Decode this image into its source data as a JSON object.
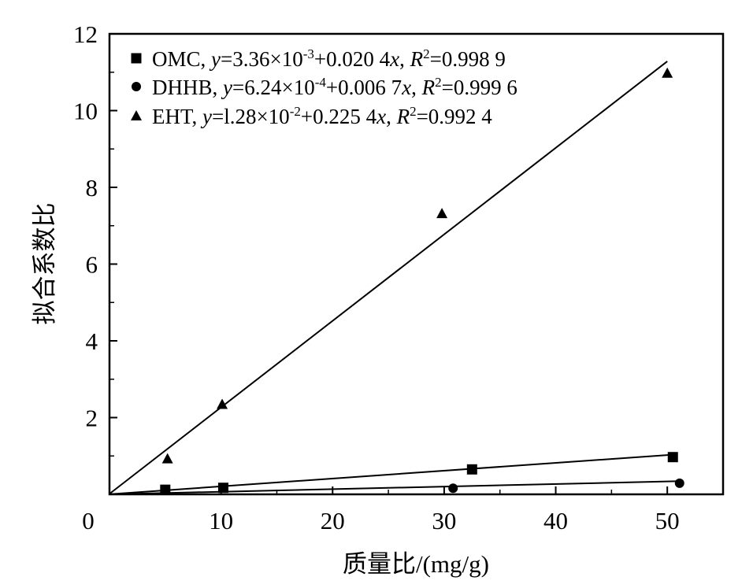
{
  "chart_data": {
    "type": "scatter",
    "xlabel": "质量比/(mg/g)",
    "ylabel": "拟合系数比",
    "xlim": [
      0,
      55
    ],
    "ylim": [
      0,
      12
    ],
    "xticks": [
      0,
      10,
      20,
      30,
      40,
      50
    ],
    "yticks": [
      2,
      4,
      6,
      8,
      10,
      12
    ],
    "grid": false,
    "legend_position": "top-left",
    "series": [
      {
        "name": "OMC",
        "marker": "square",
        "color": "#000000",
        "points": [
          {
            "x": 5,
            "y": 0.12
          },
          {
            "x": 10.2,
            "y": 0.17
          },
          {
            "x": 32.5,
            "y": 0.65
          },
          {
            "x": 50.5,
            "y": 0.97
          }
        ],
        "fit": {
          "intercept": 0.00336,
          "slope": 0.0204
        },
        "legend_parts": [
          {
            "t": "OMC, "
          },
          {
            "t": "y",
            "i": true
          },
          {
            "t": "=3.36×10"
          },
          {
            "t": "-3",
            "sup": true
          },
          {
            "t": "+0.020 4"
          },
          {
            "t": "x",
            "i": true
          },
          {
            "t": ", "
          },
          {
            "t": "R",
            "i": true
          },
          {
            "t": "2",
            "sup": true
          },
          {
            "t": "=0.998 9"
          }
        ]
      },
      {
        "name": "DHHB",
        "marker": "circle",
        "color": "#000000",
        "points": [
          {
            "x": 30.8,
            "y": 0.16
          },
          {
            "x": 51.1,
            "y": 0.29
          }
        ],
        "fit": {
          "intercept": 0.000624,
          "slope": 0.0067
        },
        "legend_parts": [
          {
            "t": "DHHB, "
          },
          {
            "t": "y",
            "i": true
          },
          {
            "t": "=6.24×10"
          },
          {
            "t": "-4",
            "sup": true
          },
          {
            "t": "+0.006 7"
          },
          {
            "t": "x",
            "i": true
          },
          {
            "t": ", "
          },
          {
            "t": "R",
            "i": true
          },
          {
            "t": "2",
            "sup": true
          },
          {
            "t": "=0.999 6"
          }
        ]
      },
      {
        "name": "EHT",
        "marker": "triangle",
        "color": "#000000",
        "points": [
          {
            "x": 5.2,
            "y": 0.93
          },
          {
            "x": 10.1,
            "y": 2.35
          },
          {
            "x": 29.8,
            "y": 7.32
          },
          {
            "x": 50.0,
            "y": 10.98
          }
        ],
        "fit": {
          "intercept": 0.0128,
          "slope": 0.2254
        },
        "legend_parts": [
          {
            "t": "EHT, "
          },
          {
            "t": "y",
            "i": true
          },
          {
            "t": "=l.28×10"
          },
          {
            "t": "-2",
            "sup": true
          },
          {
            "t": "+0.225 4"
          },
          {
            "t": "x",
            "i": true
          },
          {
            "t": ", "
          },
          {
            "t": "R",
            "i": true
          },
          {
            "t": "2",
            "sup": true
          },
          {
            "t": "=0.992 4"
          }
        ]
      }
    ]
  }
}
